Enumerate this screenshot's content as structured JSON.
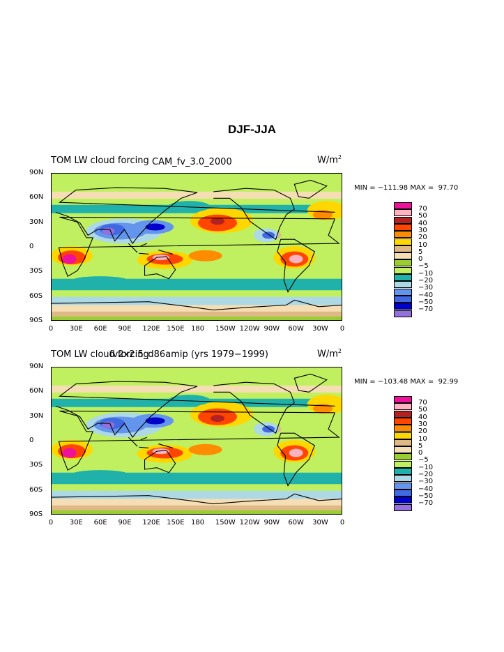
{
  "page": {
    "title": "DJF-JJA"
  },
  "levels": [
    "70",
    "50",
    "40",
    "30",
    "20",
    "10",
    "5",
    "0",
    "−5",
    "−10",
    "−20",
    "−30",
    "−40",
    "−50",
    "−70"
  ],
  "colors": [
    "#ee1199",
    "#ffb3c1",
    "#b22222",
    "#ff4500",
    "#ff8c00",
    "#ffd700",
    "#deb887",
    "#f5deb3",
    "#9acd32",
    "#c0f060",
    "#20b2aa",
    "#add8e6",
    "#6495ed",
    "#4169e1",
    "#0000cd",
    "#9370db"
  ],
  "lat_labels": [
    "90N",
    "60N",
    "30N",
    "0",
    "30S",
    "60S",
    "90S"
  ],
  "lon_labels": [
    "0",
    "30E",
    "60E",
    "90E",
    "120E",
    "150E",
    "180",
    "150W",
    "120W",
    "90W",
    "60W",
    "30W",
    "0"
  ],
  "panels": [
    {
      "left_title": "TOM LW cloud forcing",
      "center_title": "CAM_fv_3.0_2000",
      "units_base": "W/m",
      "units_exp": "2",
      "min_max": "MIN = −111.98 MAX =  97.70"
    },
    {
      "left_title": "TOM LW cloud forcing",
      "center_title": "fv2x2.5_d86amip (yrs 1979−1999)",
      "units_base": "W/m",
      "units_exp": "2",
      "min_max": "MIN = −103.48 MAX =  92.99"
    }
  ],
  "chart_data": [
    {
      "type": "heatmap",
      "title": "TOM LW cloud forcing",
      "subtitle": "CAM_fv_3.0_2000",
      "units": "W/m²",
      "min": -111.98,
      "max": 97.7,
      "contour_levels": [
        -70,
        -50,
        -40,
        -30,
        -20,
        -10,
        -5,
        0,
        5,
        10,
        20,
        30,
        40,
        50,
        70
      ],
      "x_ticks": [
        "0",
        "30E",
        "60E",
        "90E",
        "120E",
        "150E",
        "180",
        "150W",
        "120W",
        "90W",
        "60W",
        "30W",
        "0"
      ],
      "y_ticks": [
        "90N",
        "60N",
        "30N",
        "0",
        "30S",
        "60S",
        "90S"
      ]
    },
    {
      "type": "heatmap",
      "title": "TOM LW cloud forcing",
      "subtitle": "fv2x2.5_d86amip (yrs 1979−1999)",
      "units": "W/m²",
      "min": -103.48,
      "max": 92.99,
      "contour_levels": [
        -70,
        -50,
        -40,
        -30,
        -20,
        -10,
        -5,
        0,
        5,
        10,
        20,
        30,
        40,
        50,
        70
      ],
      "x_ticks": [
        "0",
        "30E",
        "60E",
        "90E",
        "120E",
        "150E",
        "180",
        "150W",
        "120W",
        "90W",
        "60W",
        "30W",
        "0"
      ],
      "y_ticks": [
        "90N",
        "60N",
        "30N",
        "0",
        "30S",
        "60S",
        "90S"
      ]
    }
  ]
}
